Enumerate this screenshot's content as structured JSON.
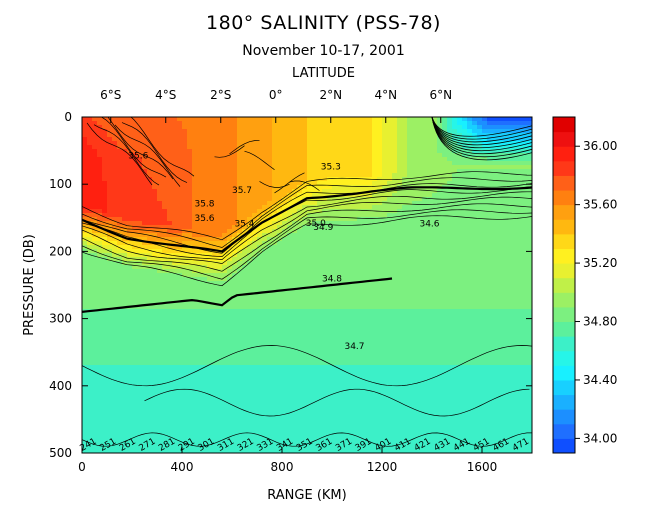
{
  "chart_data": {
    "type": "heatmap",
    "title": "180° SALINITY (PSS-78)",
    "subtitle": "November 10-17, 2001",
    "top_axis": {
      "label": "LATITUDE",
      "ticks": [
        {
          "label": "6°S",
          "range_km": 115
        },
        {
          "label": "4°S",
          "range_km": 335
        },
        {
          "label": "2°S",
          "range_km": 555
        },
        {
          "label": "0°",
          "range_km": 775
        },
        {
          "label": "2°N",
          "range_km": 995
        },
        {
          "label": "4°N",
          "range_km": 1215
        },
        {
          "label": "6°N",
          "range_km": 1435
        }
      ]
    },
    "xlabel": "RANGE (KM)",
    "ylabel": "PRESSURE (DB)",
    "xlim": [
      0,
      1800
    ],
    "ylim": [
      0,
      500
    ],
    "x_ticks": [
      {
        "value": 0,
        "label": "0"
      },
      {
        "value": 400,
        "label": "400"
      },
      {
        "value": 800,
        "label": "800"
      },
      {
        "value": 1200,
        "label": "1200"
      },
      {
        "value": 1600,
        "label": "1600"
      }
    ],
    "y_ticks": [
      {
        "value": 0,
        "label": "0"
      },
      {
        "value": 100,
        "label": "100"
      },
      {
        "value": 200,
        "label": "200"
      },
      {
        "value": 300,
        "label": "300"
      },
      {
        "value": 400,
        "label": "400"
      },
      {
        "value": 500,
        "label": "500"
      }
    ],
    "colorbar": {
      "min": 33.9,
      "max": 36.2,
      "levels": [
        33.9,
        34.0,
        34.1,
        34.2,
        34.3,
        34.4,
        34.5,
        34.6,
        34.7,
        34.8,
        34.9,
        35.0,
        35.1,
        35.2,
        35.3,
        35.4,
        35.5,
        35.6,
        35.7,
        35.8,
        35.9,
        36.0,
        36.1,
        36.2
      ],
      "tick_labels": [
        {
          "value": 34.0,
          "label": "34.00"
        },
        {
          "value": 34.4,
          "label": "34.40"
        },
        {
          "value": 34.8,
          "label": "34.80"
        },
        {
          "value": 35.2,
          "label": "35.20"
        },
        {
          "value": 35.6,
          "label": "35.60"
        },
        {
          "value": 36.0,
          "label": "36.00"
        }
      ]
    },
    "contour_labels": [
      {
        "text": "35.6",
        "range_km": 225,
        "pressure": 62
      },
      {
        "text": "35.3",
        "range_km": 995,
        "pressure": 78
      },
      {
        "text": "35.7",
        "range_km": 640,
        "pressure": 113
      },
      {
        "text": "35.8",
        "range_km": 490,
        "pressure": 133
      },
      {
        "text": "35.6",
        "range_km": 490,
        "pressure": 155
      },
      {
        "text": "35.4",
        "range_km": 650,
        "pressure": 163
      },
      {
        "text": "35.0",
        "range_km": 935,
        "pressure": 162
      },
      {
        "text": "34.9",
        "range_km": 965,
        "pressure": 168
      },
      {
        "text": "34.6",
        "range_km": 1390,
        "pressure": 163
      },
      {
        "text": "34.8",
        "range_km": 1000,
        "pressure": 245
      },
      {
        "text": "34.7",
        "range_km": 1090,
        "pressure": 345
      }
    ],
    "bottom_labels": [
      "241",
      "251",
      "261",
      "271",
      "281",
      "291",
      "301",
      "311",
      "321",
      "331",
      "341",
      "351",
      "361",
      "371",
      "391",
      "401",
      "411",
      "421",
      "431",
      "441",
      "451",
      "461",
      "471"
    ],
    "colors": {
      "levels": [
        "#0f4fff",
        "#1f6fff",
        "#1c8fff",
        "#1ab0ff",
        "#18d0ff",
        "#18f0ff",
        "#26f5e8",
        "#3cf0c8",
        "#5cf09c",
        "#7cf080",
        "#9cf064",
        "#c0f048",
        "#e8f030",
        "#fff020",
        "#ffd818",
        "#ffb810",
        "#ffa010",
        "#ff8010",
        "#ff6018",
        "#ff3818",
        "#ff2010",
        "#ee1010",
        "#e00000"
      ]
    }
  }
}
